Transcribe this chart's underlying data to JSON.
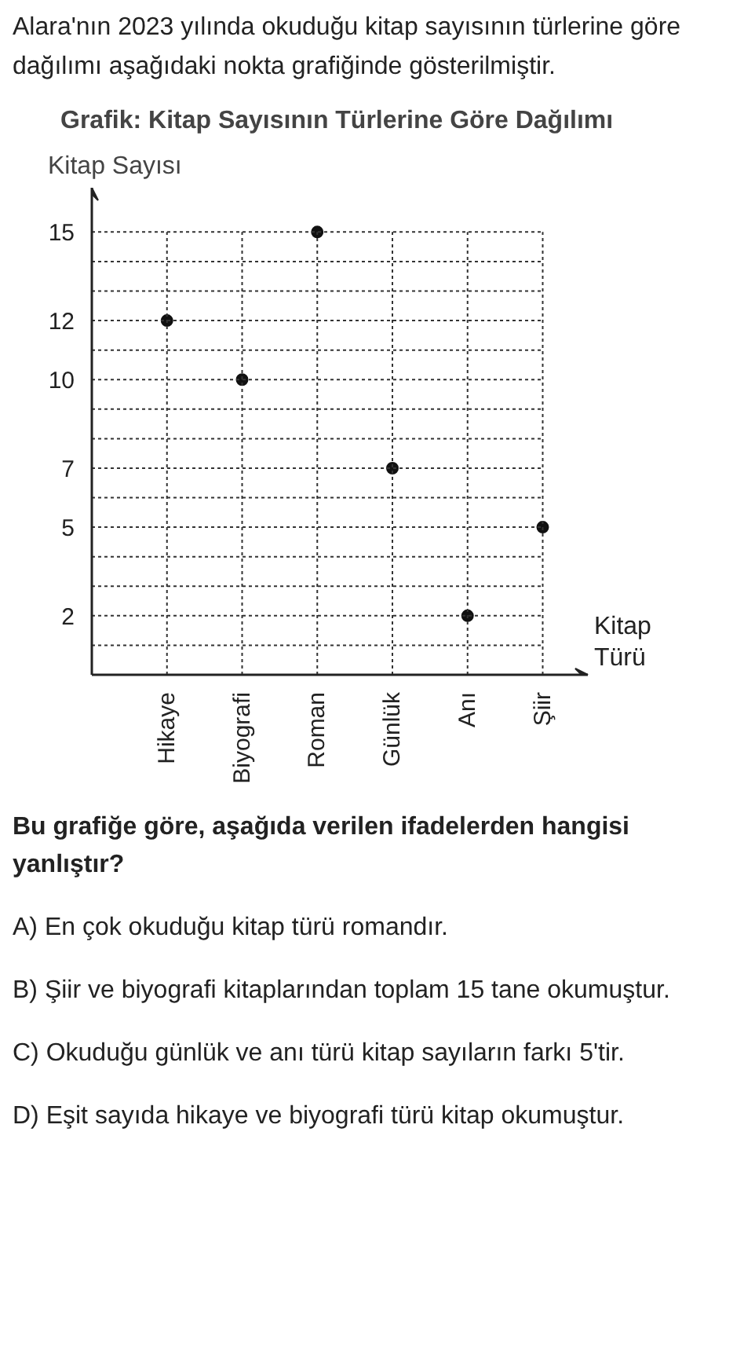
{
  "chart_data": {
    "type": "scatter",
    "title": "Grafik: Kitap Sayısının Türlerine Göre Dağılımı",
    "xlabel": "Kitap Türü",
    "ylabel": "Kitap Sayısı",
    "categories": [
      "Hikaye",
      "Biyografi",
      "Roman",
      "Günlük",
      "Anı",
      "Şiir"
    ],
    "values": [
      12,
      10,
      15,
      7,
      2,
      5
    ],
    "color": "#111111",
    "marker": "circle",
    "ylim": [
      0,
      16.5
    ],
    "yticks": [
      {
        "value": 1,
        "label": null
      },
      2,
      {
        "value": 3,
        "label": null
      },
      {
        "value": 4,
        "label": null
      },
      5,
      {
        "value": 6,
        "label": null
      },
      7,
      {
        "value": 8,
        "label": null
      },
      {
        "value": 9,
        "label": null
      },
      10,
      {
        "value": 11,
        "label": null
      },
      12,
      {
        "value": 13,
        "label": null
      },
      {
        "value": 14,
        "label": null
      },
      15
    ],
    "grid": true,
    "annotations": [
      "Alara'nın 2023 yılında okuduğu kitap sayısının türlerine göre dağılımı aşağıdaki nokta grafiğinde gösterilmiştir.",
      "Bu grafiğe göre, aşağıda verilen ifadelerden hangisi yanlıştır?",
      "A) En çok okuduğu kitap türü romandır.",
      "B) Şiir ve biyografi kitaplarından toplam 15 tane okumuştur.",
      "C) Okuduğu günlük ve anı türü kitap sayıların farkı 5'tir.",
      "D) Eşit sayıda hikaye ve biyografi türü kitap okumuştur."
    ]
  }
}
